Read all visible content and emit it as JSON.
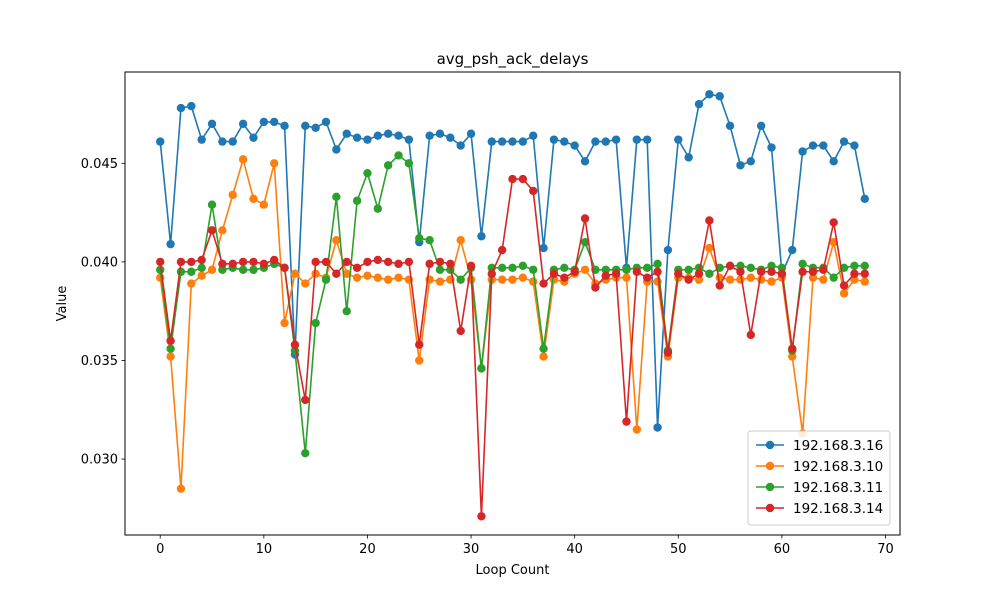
{
  "chart_data": {
    "type": "line",
    "title": "avg_psh_ack_delays",
    "xlabel": "Loop Count",
    "ylabel": "Value",
    "xlim": [
      -3.4,
      71.4
    ],
    "ylim": [
      0.02615,
      0.04963
    ],
    "x_ticks": [
      0,
      10,
      20,
      30,
      40,
      50,
      60,
      70
    ],
    "x_tick_labels": [
      "0",
      "10",
      "20",
      "30",
      "40",
      "50",
      "60",
      "70"
    ],
    "y_ticks": [
      0.03,
      0.035,
      0.04,
      0.045
    ],
    "y_tick_labels": [
      "0.030",
      "0.035",
      "0.040",
      "0.045"
    ],
    "grid": false,
    "legend_position": "lower-right",
    "markers": "circle",
    "x": [
      0,
      1,
      2,
      3,
      4,
      5,
      6,
      7,
      8,
      9,
      10,
      11,
      12,
      13,
      14,
      15,
      16,
      17,
      18,
      19,
      20,
      21,
      22,
      23,
      24,
      25,
      26,
      27,
      28,
      29,
      30,
      31,
      32,
      33,
      34,
      35,
      36,
      37,
      38,
      39,
      40,
      41,
      42,
      43,
      44,
      45,
      46,
      47,
      48,
      49,
      50,
      51,
      52,
      53,
      54,
      55,
      56,
      57,
      58,
      59,
      60,
      61,
      62,
      63,
      64,
      65,
      66,
      67,
      68
    ],
    "series": [
      {
        "name": "192.168.3.16",
        "color": "#1f77b4",
        "values": [
          0.0461,
          0.0409,
          0.0478,
          0.0479,
          0.0462,
          0.047,
          0.0461,
          0.0461,
          0.047,
          0.0463,
          0.0471,
          0.0471,
          0.0469,
          0.0353,
          0.0469,
          0.0468,
          0.0471,
          0.0457,
          0.0465,
          0.0463,
          0.0462,
          0.0464,
          0.0465,
          0.0464,
          0.0462,
          0.041,
          0.0464,
          0.0465,
          0.0463,
          0.0459,
          0.0465,
          0.0413,
          0.0461,
          0.0461,
          0.0461,
          0.0461,
          0.0464,
          0.0407,
          0.0462,
          0.0461,
          0.0459,
          0.0451,
          0.0461,
          0.0461,
          0.0462,
          0.0397,
          0.0462,
          0.0462,
          0.0316,
          0.0406,
          0.0462,
          0.0453,
          0.048,
          0.0485,
          0.0484,
          0.0469,
          0.0449,
          0.0451,
          0.0469,
          0.0458,
          0.0394,
          0.0406,
          0.0456,
          0.0459,
          0.0459,
          0.0451,
          0.0461,
          0.0459,
          0.0432
        ]
      },
      {
        "name": "192.168.3.10",
        "color": "#ff7f0e",
        "values": [
          0.0392,
          0.0352,
          0.0285,
          0.0389,
          0.0393,
          0.0396,
          0.0416,
          0.0434,
          0.0452,
          0.0432,
          0.0429,
          0.045,
          0.0369,
          0.0394,
          0.0389,
          0.0394,
          0.0392,
          0.0411,
          0.0394,
          0.0392,
          0.0393,
          0.0392,
          0.0391,
          0.0392,
          0.0391,
          0.035,
          0.0391,
          0.039,
          0.0391,
          0.0411,
          0.0391,
          0.0346,
          0.0391,
          0.0391,
          0.0391,
          0.0392,
          0.039,
          0.0352,
          0.0391,
          0.039,
          0.0394,
          0.0396,
          0.0389,
          0.0391,
          0.0392,
          0.0392,
          0.0315,
          0.039,
          0.039,
          0.0352,
          0.0392,
          0.0392,
          0.0391,
          0.0407,
          0.0392,
          0.0391,
          0.0391,
          0.0392,
          0.0391,
          0.039,
          0.0392,
          0.0352,
          0.0313,
          0.0392,
          0.0391,
          0.041,
          0.0384,
          0.0391,
          0.039
        ]
      },
      {
        "name": "192.168.3.11",
        "color": "#2ca02c",
        "values": [
          0.0396,
          0.0356,
          0.0395,
          0.0395,
          0.0397,
          0.0429,
          0.0396,
          0.0397,
          0.0396,
          0.0396,
          0.0397,
          0.0399,
          0.0397,
          0.0355,
          0.0303,
          0.0369,
          0.0391,
          0.0433,
          0.0375,
          0.0431,
          0.0445,
          0.0427,
          0.0449,
          0.0454,
          0.045,
          0.0412,
          0.0411,
          0.0396,
          0.0396,
          0.0391,
          0.0397,
          0.0346,
          0.0397,
          0.0397,
          0.0397,
          0.0398,
          0.0396,
          0.0356,
          0.0396,
          0.0397,
          0.0396,
          0.041,
          0.0396,
          0.0396,
          0.0396,
          0.0396,
          0.0397,
          0.0397,
          0.0399,
          0.0355,
          0.0396,
          0.0396,
          0.0397,
          0.0394,
          0.0397,
          0.0398,
          0.0398,
          0.0397,
          0.0396,
          0.0398,
          0.0397,
          0.0355,
          0.0399,
          0.0397,
          0.0397,
          0.0392,
          0.0397,
          0.0398,
          0.0398
        ]
      },
      {
        "name": "192.168.3.14",
        "color": "#d62728",
        "values": [
          0.04,
          0.036,
          0.04,
          0.04,
          0.0401,
          0.0416,
          0.0399,
          0.0399,
          0.04,
          0.04,
          0.0399,
          0.0401,
          0.0397,
          0.0358,
          0.033,
          0.04,
          0.04,
          0.0394,
          0.04,
          0.0397,
          0.04,
          0.0401,
          0.04,
          0.0399,
          0.04,
          0.0358,
          0.0399,
          0.04,
          0.0399,
          0.0365,
          0.0398,
          0.0271,
          0.0394,
          0.0406,
          0.0442,
          0.0442,
          0.0436,
          0.0389,
          0.0394,
          0.0392,
          0.0395,
          0.0422,
          0.0387,
          0.0393,
          0.0394,
          0.0319,
          0.0395,
          0.0392,
          0.0395,
          0.0354,
          0.0394,
          0.0391,
          0.0394,
          0.0421,
          0.0388,
          0.0398,
          0.0395,
          0.0363,
          0.0395,
          0.0395,
          0.0394,
          0.0356,
          0.0395,
          0.0395,
          0.0396,
          0.042,
          0.0388,
          0.0394,
          0.0394
        ]
      }
    ]
  }
}
